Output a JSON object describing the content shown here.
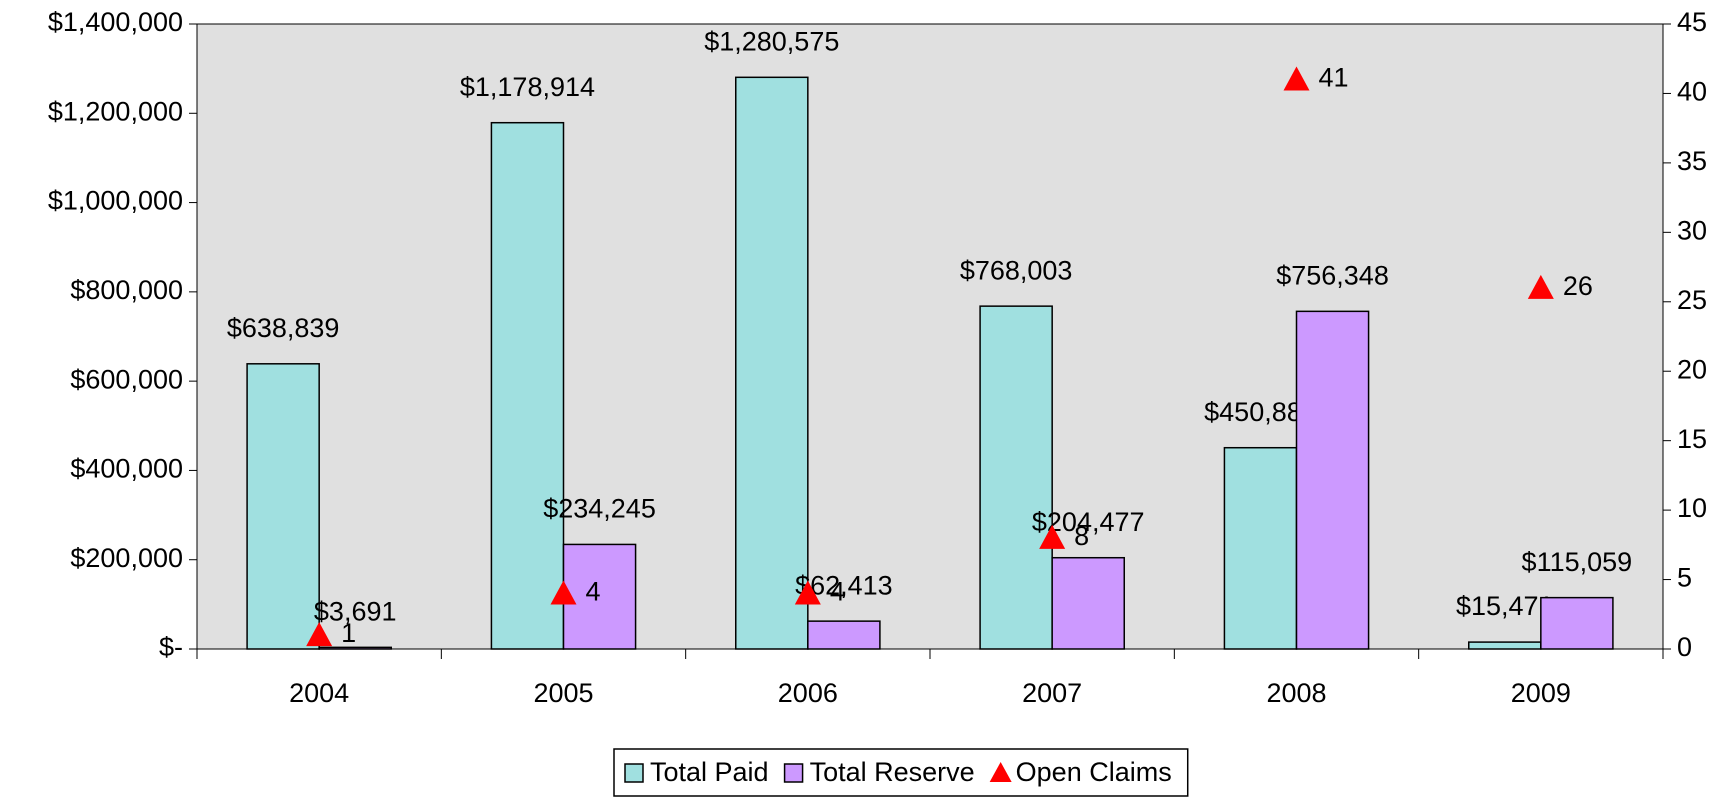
{
  "chart_data": {
    "type": "bar",
    "categories": [
      "2004",
      "2005",
      "2006",
      "2007",
      "2008",
      "2009"
    ],
    "series": [
      {
        "name": "Total Paid",
        "color": "#a0e0e0",
        "type": "bar",
        "values": [
          638839,
          1178914,
          1280575,
          768003,
          450882,
          15471
        ],
        "value_labels": [
          "$638,839",
          "$1,178,914",
          "$1,280,575",
          "$768,003",
          "$450,882",
          "$15,471"
        ]
      },
      {
        "name": "Total Reserve",
        "color": "#cc99ff",
        "type": "bar",
        "values": [
          3691,
          234245,
          62413,
          204477,
          756348,
          115059
        ],
        "value_labels": [
          "$3,691",
          "$234,245",
          "$62,413",
          "$204,477",
          "$756,348",
          "$115,059"
        ]
      },
      {
        "name": "Open Claims",
        "color": "#ff0000",
        "type": "scatter",
        "axis": "y2",
        "marker": "triangle",
        "values": [
          1,
          4,
          4,
          8,
          41,
          26
        ]
      }
    ],
    "ylim": [
      0,
      1400000
    ],
    "yticks": [
      {
        "value": 0,
        "label": "$-"
      },
      {
        "value": 200000,
        "label": "$200,000"
      },
      {
        "value": 400000,
        "label": "$400,000"
      },
      {
        "value": 600000,
        "label": "$600,000"
      },
      {
        "value": 800000,
        "label": "$800,000"
      },
      {
        "value": 1000000,
        "label": "$1,000,000"
      },
      {
        "value": 1200000,
        "label": "$1,200,000"
      },
      {
        "value": 1400000,
        "label": "$1,400,000"
      }
    ],
    "y2lim": [
      0,
      45
    ],
    "y2ticks": [
      0,
      5,
      10,
      15,
      20,
      25,
      30,
      35,
      40,
      45
    ],
    "legend": "bottom",
    "plot_background": "#e0e0e0"
  }
}
